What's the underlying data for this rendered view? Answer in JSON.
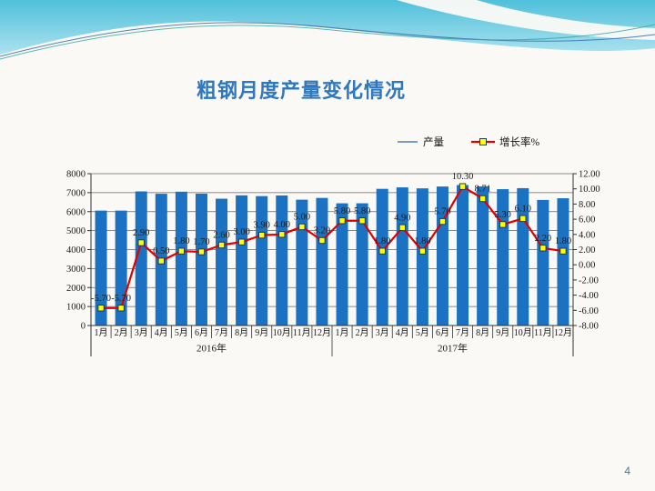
{
  "slide": {
    "title": "粗钢月度产量变化情况",
    "page_number": "4"
  },
  "chart_data": {
    "type": "combo",
    "title": "粗钢月度产量变化情况",
    "categories": [
      "1月",
      "2月",
      "3月",
      "4月",
      "5月",
      "6月",
      "7月",
      "8月",
      "9月",
      "10月",
      "11月",
      "12月",
      "1月",
      "2月",
      "3月",
      "4月",
      "5月",
      "6月",
      "7月",
      "8月",
      "9月",
      "10月",
      "11月",
      "12月"
    ],
    "category_groups": [
      {
        "label": "2016年",
        "months": 12
      },
      {
        "label": "2017年",
        "months": 12
      }
    ],
    "series": [
      {
        "name": "产量",
        "type": "bar",
        "axis": "left",
        "color": "#1C72C2",
        "values": [
          6054,
          6054,
          7065,
          6942,
          7050,
          6947,
          6681,
          6857,
          6817,
          6851,
          6629,
          6722,
          6439,
          6439,
          7200,
          7278,
          7226,
          7323,
          7402,
          7330,
          7183,
          7236,
          6615,
          6705
        ]
      },
      {
        "name": "增长率%",
        "type": "line",
        "axis": "right",
        "color": "#E00000",
        "marker": "square",
        "marker_fill": "#FFFF00",
        "marker_stroke": "#1F3864",
        "values": [
          -5.7,
          -5.7,
          2.9,
          0.5,
          1.8,
          1.7,
          2.6,
          3.0,
          3.9,
          4.0,
          5.0,
          3.2,
          5.8,
          5.8,
          1.8,
          4.9,
          1.8,
          5.7,
          10.3,
          8.71,
          5.3,
          6.1,
          2.2,
          1.8
        ],
        "labels": [
          "-5.70",
          "-5.70",
          "2.90",
          "0.50",
          "1.80",
          "1.70",
          "2.60",
          "3.00",
          "3.90",
          "4.00",
          "5.00",
          "3.20",
          "5.80",
          "5.80",
          "1.80",
          "4.90",
          "1.80",
          "5.70",
          "10.30",
          "8.71",
          "5.30",
          "6.10",
          "2.20",
          "1.80"
        ]
      }
    ],
    "left_axis": {
      "min": 0,
      "max": 8000,
      "step": 1000
    },
    "right_axis": {
      "min": -8,
      "max": 12,
      "step": 2
    },
    "grid": true,
    "legend_position": "top-right",
    "colors": {
      "gridline": "#666666",
      "axis": "#333333",
      "text": "#1a1a1a"
    }
  }
}
